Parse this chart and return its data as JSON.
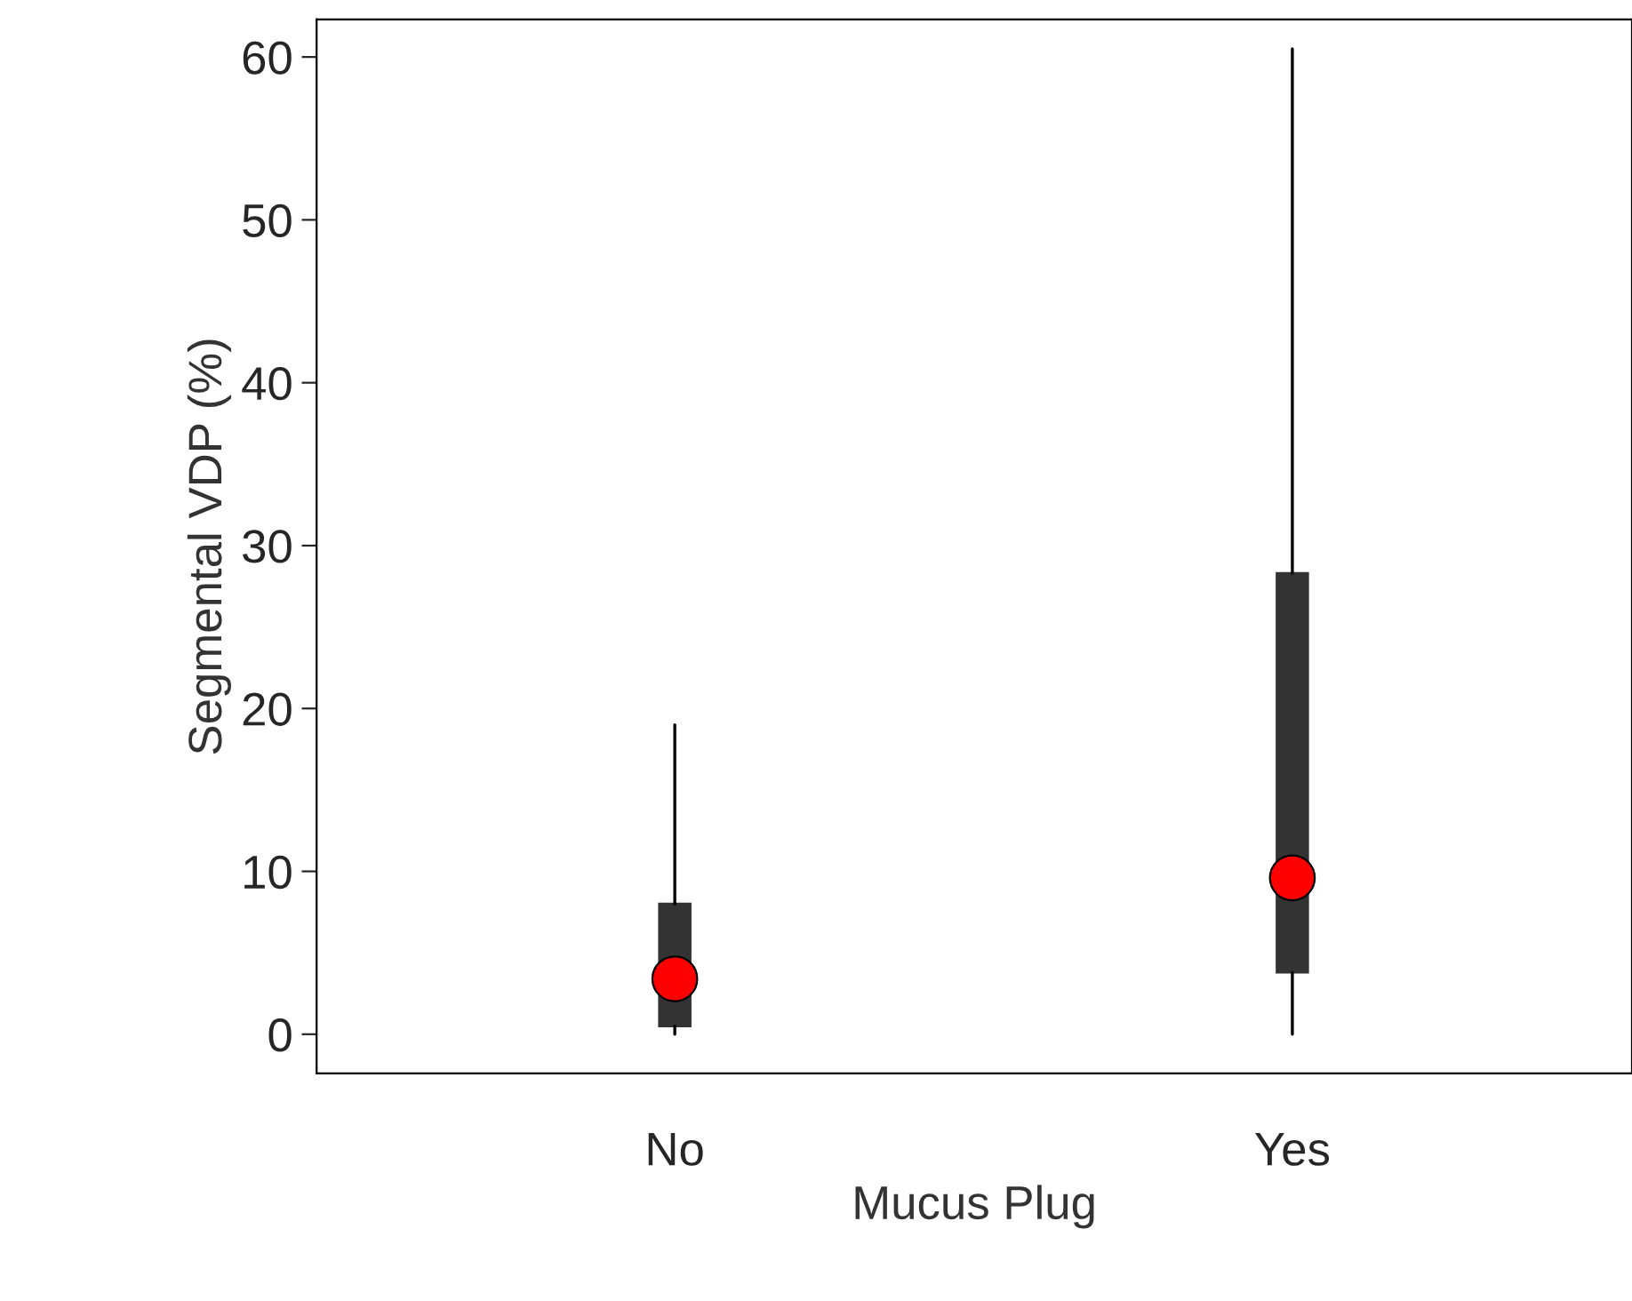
{
  "chart_data": {
    "type": "box",
    "xlabel": "Mucus Plug",
    "ylabel": "Segmental VDP (%)",
    "categories": [
      "No",
      "Yes"
    ],
    "boxes": [
      {
        "low": 0,
        "q1": 0.5,
        "median": 3.4,
        "q3": 8.0,
        "high": 19.0
      },
      {
        "low": 0,
        "q1": 3.8,
        "median": 9.6,
        "q3": 28.3,
        "high": 60.5
      }
    ],
    "color": "#333333",
    "ylim": [
      -2.4,
      62.3
    ],
    "yticks": [
      0,
      10,
      20,
      30,
      40,
      50,
      60
    ],
    "grid": false
  }
}
